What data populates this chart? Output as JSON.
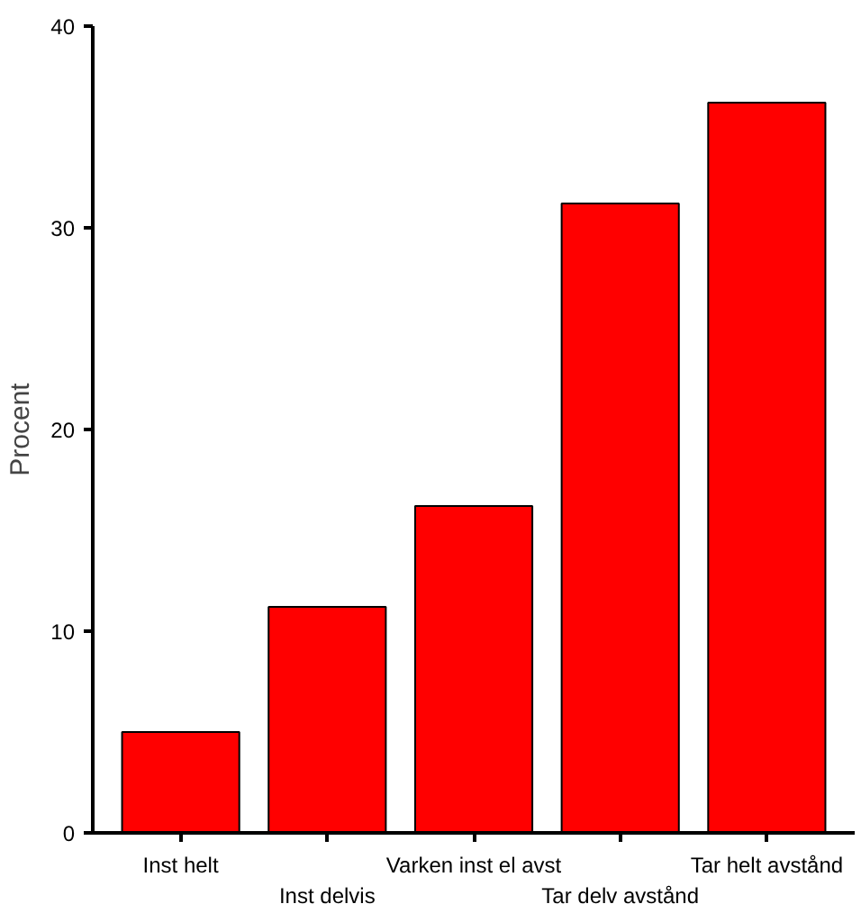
{
  "chart_data": {
    "type": "bar",
    "ylabel": "Procent",
    "categories": [
      "Inst helt",
      "Inst delvis",
      "Varken inst el avst",
      "Tar delv avstånd",
      "Tar helt avstånd"
    ],
    "values": [
      5.0,
      11.2,
      16.2,
      31.2,
      36.2
    ],
    "color": "#ff0000",
    "ylim": [
      0,
      40
    ],
    "yticks": [
      0,
      10,
      20,
      30,
      40
    ],
    "grid": false
  }
}
